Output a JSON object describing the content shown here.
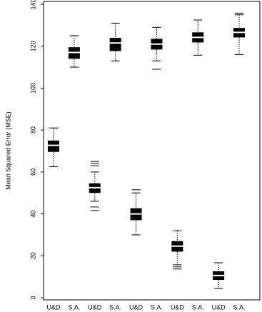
{
  "chart_data": {
    "type": "box",
    "y_label": "Mean Squared Error (MSE)",
    "categories": [
      "U&D",
      "S.A.",
      "U&D",
      "S.A.",
      "U&D",
      "S.A.",
      "U&D",
      "S.A.",
      "U&D",
      "S.A."
    ],
    "boxes": [
      {
        "min": 62.5,
        "q1": 69.6,
        "median": 72.7,
        "q3": 75,
        "max": 81,
        "outliers": []
      },
      {
        "min": 110,
        "q1": 114,
        "median": 117,
        "q3": 119.5,
        "max": 125,
        "outliers": []
      },
      {
        "min": 46,
        "q1": 50,
        "median": 52.5,
        "q3": 54.6,
        "max": 60,
        "outliers": [
          65,
          64,
          63,
          43.3,
          41.6
        ]
      },
      {
        "min": 113,
        "q1": 117.7,
        "median": 121.5,
        "q3": 124,
        "max": 131,
        "outliers": []
      },
      {
        "min": 30,
        "q1": 37,
        "median": 40,
        "q3": 42.7,
        "max": 50,
        "outliers": [
          51.5
        ]
      },
      {
        "min": 113,
        "q1": 118.4,
        "median": 121,
        "q3": 123.5,
        "max": 129,
        "outliers": [
          109
        ]
      },
      {
        "min": 15.7,
        "q1": 22,
        "median": 24.6,
        "q3": 27,
        "max": 32,
        "outliers": [
          14.7,
          13.7
        ]
      },
      {
        "min": 115.7,
        "q1": 121.8,
        "median": 124.2,
        "q3": 126.6,
        "max": 132.5,
        "outliers": []
      },
      {
        "min": 4.4,
        "q1": 8.5,
        "median": 10.6,
        "q3": 12.6,
        "max": 16.7,
        "outliers": []
      },
      {
        "min": 116,
        "q1": 124.2,
        "median": 126.6,
        "q3": 128.7,
        "max": 135,
        "outliers": [
          135.8
        ]
      }
    ],
    "color": "#000000",
    "ylim": [
      0,
      140
    ],
    "yticks": [
      0,
      20,
      40,
      60,
      80,
      100,
      120,
      140
    ]
  }
}
